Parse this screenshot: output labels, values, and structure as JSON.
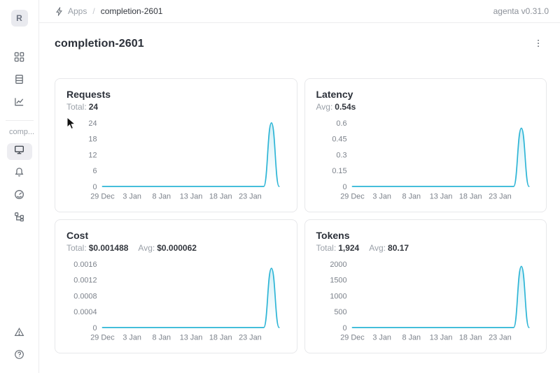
{
  "header": {
    "breadcrumb": {
      "root": "Apps",
      "separator": "/",
      "current": "completion-2601",
      "icon": "lightning-icon"
    },
    "version_label": "agenta v0.31.0"
  },
  "sidebar": {
    "logo_letter": "R",
    "section_label": "comp...",
    "nav_top": [
      {
        "icon": "grid-icon",
        "name": "apps"
      },
      {
        "icon": "table-icon",
        "name": "test-sets"
      },
      {
        "icon": "line-chart-icon",
        "name": "observability"
      }
    ],
    "nav_app": [
      {
        "icon": "monitor-icon",
        "name": "playground",
        "active": true
      },
      {
        "icon": "bell-icon",
        "name": "evaluations",
        "active": false
      },
      {
        "icon": "gauge-icon",
        "name": "dashboard",
        "active": false
      },
      {
        "icon": "tree-icon",
        "name": "traces",
        "active": false
      }
    ],
    "nav_bottom": [
      {
        "icon": "warning-triangle-icon",
        "name": "alerts"
      },
      {
        "icon": "help-icon",
        "name": "help"
      }
    ]
  },
  "page": {
    "title": "completion-2601"
  },
  "theme": {
    "accent": "#2db5d6",
    "accent_fill_opacity": 0.22,
    "tick_color": "#7c828b"
  },
  "chart_data": [
    {
      "type": "area",
      "title": "Requests",
      "stats": [
        {
          "label": "Total:",
          "value": "24"
        }
      ],
      "x_domain": [
        0,
        30
      ],
      "x_ticks": [
        {
          "label": "29 Dec",
          "day": 0
        },
        {
          "label": "3 Jan",
          "day": 5
        },
        {
          "label": "8 Jan",
          "day": 10
        },
        {
          "label": "13 Jan",
          "day": 15
        },
        {
          "label": "18 Jan",
          "day": 20
        },
        {
          "label": "23 Jan",
          "day": 25
        }
      ],
      "ylim": [
        0,
        24
      ],
      "y_ticks": [
        {
          "label": "0",
          "value": 0
        },
        {
          "label": "6",
          "value": 6
        },
        {
          "label": "12",
          "value": 12
        },
        {
          "label": "18",
          "value": 18
        },
        {
          "label": "24",
          "value": 24
        }
      ],
      "grid": false,
      "legend": false,
      "series": [
        {
          "name": "Requests",
          "points": [
            [
              0,
              0
            ],
            [
              5,
              0
            ],
            [
              10,
              0
            ],
            [
              15,
              0
            ],
            [
              20,
              0
            ],
            [
              25,
              0
            ],
            [
              27.3,
              0
            ],
            [
              28.6,
              24
            ],
            [
              29.9,
              0
            ]
          ]
        }
      ]
    },
    {
      "type": "area",
      "title": "Latency",
      "stats": [
        {
          "label": "Avg:",
          "value": "0.54s"
        }
      ],
      "x_domain": [
        0,
        30
      ],
      "x_ticks": [
        {
          "label": "29 Dec",
          "day": 0
        },
        {
          "label": "3 Jan",
          "day": 5
        },
        {
          "label": "8 Jan",
          "day": 10
        },
        {
          "label": "13 Jan",
          "day": 15
        },
        {
          "label": "18 Jan",
          "day": 20
        },
        {
          "label": "23 Jan",
          "day": 25
        }
      ],
      "ylim": [
        0,
        0.6
      ],
      "y_ticks": [
        {
          "label": "0",
          "value": 0
        },
        {
          "label": "0.15",
          "value": 0.15
        },
        {
          "label": "0.3",
          "value": 0.3
        },
        {
          "label": "0.45",
          "value": 0.45
        },
        {
          "label": "0.6",
          "value": 0.6
        }
      ],
      "grid": false,
      "legend": false,
      "series": [
        {
          "name": "Latency",
          "points": [
            [
              0,
              0
            ],
            [
              5,
              0
            ],
            [
              10,
              0
            ],
            [
              15,
              0
            ],
            [
              20,
              0
            ],
            [
              25,
              0
            ],
            [
              27.3,
              0
            ],
            [
              28.6,
              0.55
            ],
            [
              29.9,
              0
            ]
          ]
        }
      ]
    },
    {
      "type": "area",
      "title": "Cost",
      "stats": [
        {
          "label": "Total:",
          "value": "$0.001488"
        },
        {
          "label": "Avg:",
          "value": "$0.000062"
        }
      ],
      "x_domain": [
        0,
        30
      ],
      "x_ticks": [
        {
          "label": "29 Dec",
          "day": 0
        },
        {
          "label": "3 Jan",
          "day": 5
        },
        {
          "label": "8 Jan",
          "day": 10
        },
        {
          "label": "13 Jan",
          "day": 15
        },
        {
          "label": "18 Jan",
          "day": 20
        },
        {
          "label": "23 Jan",
          "day": 25
        }
      ],
      "ylim": [
        0,
        0.0016
      ],
      "y_ticks": [
        {
          "label": "0",
          "value": 0
        },
        {
          "label": "0.0004",
          "value": 0.0004
        },
        {
          "label": "0.0008",
          "value": 0.0008
        },
        {
          "label": "0.0012",
          "value": 0.0012
        },
        {
          "label": "0.0016",
          "value": 0.0016
        }
      ],
      "grid": false,
      "legend": false,
      "series": [
        {
          "name": "Cost",
          "points": [
            [
              0,
              0
            ],
            [
              5,
              0
            ],
            [
              10,
              0
            ],
            [
              15,
              0
            ],
            [
              20,
              0
            ],
            [
              25,
              0
            ],
            [
              27.3,
              0
            ],
            [
              28.6,
              0.00149
            ],
            [
              29.9,
              0
            ]
          ]
        }
      ]
    },
    {
      "type": "area",
      "title": "Tokens",
      "stats": [
        {
          "label": "Total:",
          "value": "1,924"
        },
        {
          "label": "Avg:",
          "value": "80.17"
        }
      ],
      "x_domain": [
        0,
        30
      ],
      "x_ticks": [
        {
          "label": "29 Dec",
          "day": 0
        },
        {
          "label": "3 Jan",
          "day": 5
        },
        {
          "label": "8 Jan",
          "day": 10
        },
        {
          "label": "13 Jan",
          "day": 15
        },
        {
          "label": "18 Jan",
          "day": 20
        },
        {
          "label": "23 Jan",
          "day": 25
        }
      ],
      "ylim": [
        0,
        2000
      ],
      "y_ticks": [
        {
          "label": "0",
          "value": 0
        },
        {
          "label": "500",
          "value": 500
        },
        {
          "label": "1000",
          "value": 1000
        },
        {
          "label": "1500",
          "value": 1500
        },
        {
          "label": "2000",
          "value": 2000
        }
      ],
      "grid": false,
      "legend": false,
      "series": [
        {
          "name": "Tokens",
          "points": [
            [
              0,
              0
            ],
            [
              5,
              0
            ],
            [
              10,
              0
            ],
            [
              15,
              0
            ],
            [
              20,
              0
            ],
            [
              25,
              0
            ],
            [
              27.3,
              0
            ],
            [
              28.6,
              1924
            ],
            [
              29.9,
              0
            ]
          ]
        }
      ]
    }
  ]
}
